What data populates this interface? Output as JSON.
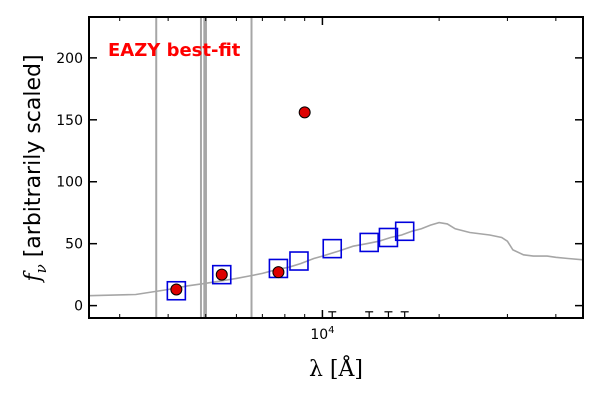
{
  "chart_data": {
    "type": "scatter",
    "title": "",
    "annotation": "EAZY best-fit",
    "xlabel": "λ [Å]",
    "ylabel_symbol": "f",
    "ylabel_subscript": "ν",
    "ylabel_rest": " [arbitrarily scaled]",
    "xscale": "log",
    "xlim": [
      2500,
      47000
    ],
    "ylim": [
      -10,
      233
    ],
    "yticks": [
      0,
      50,
      100,
      150,
      200
    ],
    "ytick_labels": [
      "0",
      "50",
      "100",
      "150",
      "200"
    ],
    "xtick_major": [
      {
        "value": 10000,
        "base": "10",
        "exp": "4"
      }
    ],
    "xtick_minor": [
      3000,
      4000,
      5000,
      6000,
      7000,
      8000,
      9000,
      20000,
      30000,
      40000
    ],
    "grid": false,
    "colors": {
      "template": "#a6a6a6",
      "model": "#0000dd",
      "observed": "#dd0000",
      "annotation": "#ff0000"
    },
    "series": [
      {
        "kind": "line",
        "points": [
          [
            2500,
            8
          ],
          [
            3300,
            9
          ],
          [
            4000,
            13
          ],
          [
            4500,
            16
          ],
          [
            5000,
            18
          ],
          [
            5500,
            20
          ],
          [
            6000,
            22
          ],
          [
            6500,
            24
          ],
          [
            7000,
            26
          ],
          [
            7600,
            29
          ],
          [
            8200,
            31
          ],
          [
            8800,
            34
          ],
          [
            9500,
            38
          ],
          [
            10000,
            40
          ],
          [
            11000,
            44
          ],
          [
            12000,
            48
          ],
          [
            13000,
            50
          ],
          [
            14000,
            52
          ],
          [
            15000,
            55
          ],
          [
            16000,
            57
          ],
          [
            17000,
            60
          ],
          [
            18000,
            62
          ],
          [
            19000,
            65
          ],
          [
            20000,
            67
          ],
          [
            21000,
            66
          ],
          [
            22000,
            62
          ],
          [
            24000,
            59
          ],
          [
            27000,
            57
          ],
          [
            29000,
            55
          ],
          [
            30000,
            52
          ],
          [
            31000,
            45
          ],
          [
            33000,
            41
          ],
          [
            35000,
            40
          ],
          [
            38000,
            40
          ],
          [
            40000,
            39
          ],
          [
            43000,
            38
          ],
          [
            47000,
            37
          ]
        ],
        "spikes": [
          {
            "x": 3727,
            "y": 235
          },
          {
            "x": 4861,
            "y": 235
          },
          {
            "x": 4959,
            "y": 235
          },
          {
            "x": 5007,
            "y": 235
          },
          {
            "x": 6563,
            "y": 235
          }
        ]
      },
      {
        "kind": "squares",
        "points": [
          [
            4200,
            12
          ],
          [
            5500,
            25
          ],
          [
            7700,
            30
          ],
          [
            8700,
            36
          ],
          [
            10600,
            46
          ],
          [
            13200,
            51
          ],
          [
            14800,
            55
          ],
          [
            16300,
            60
          ]
        ]
      },
      {
        "kind": "circles",
        "points": [
          [
            4200,
            13
          ],
          [
            5500,
            25
          ],
          [
            7700,
            27
          ],
          [
            9000,
            156
          ]
        ]
      },
      {
        "kind": "upper_limits",
        "points": [
          [
            10600,
            -5
          ],
          [
            13200,
            -5
          ],
          [
            14800,
            -5
          ],
          [
            16300,
            -5
          ]
        ]
      }
    ]
  }
}
